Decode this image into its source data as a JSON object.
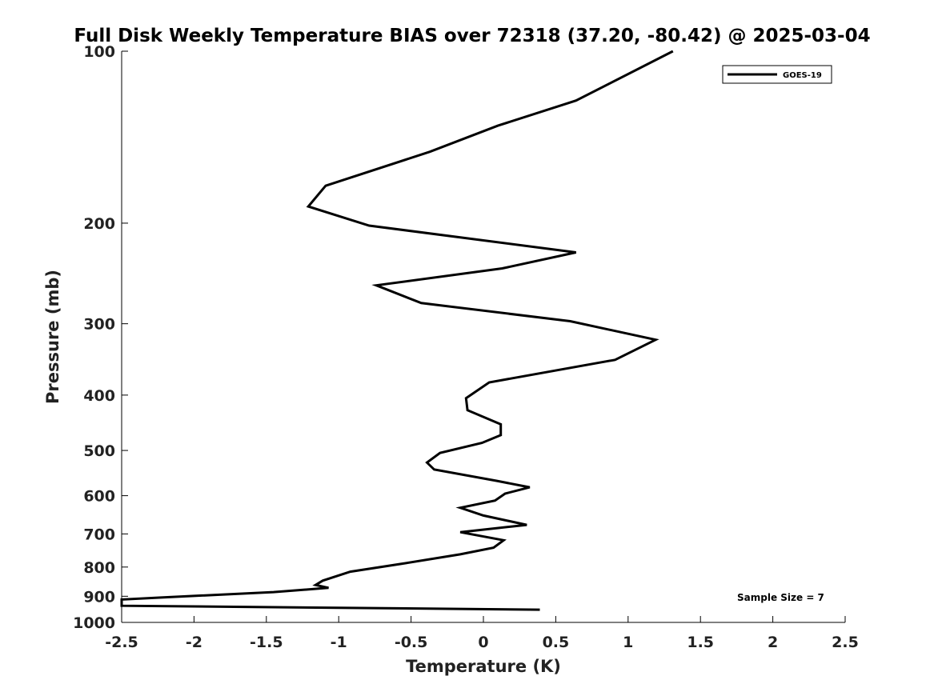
{
  "chart_data": {
    "type": "line",
    "title": "Full Disk Weekly Temperature BIAS over 72318 (37.20, -80.42) @ 2025-03-04",
    "xlabel": "Temperature (K)",
    "ylabel": "Pressure (mb)",
    "xlim": [
      -2.5,
      2.5
    ],
    "ylim": [
      100,
      1000
    ],
    "y_scale": "log",
    "y_reversed": true,
    "x_ticks": [
      "-2.5",
      "-2",
      "-1.5",
      "-1",
      "-0.5",
      "0",
      "0.5",
      "1",
      "1.5",
      "2",
      "2.5"
    ],
    "y_ticks": [
      "100",
      "200",
      "300",
      "400",
      "500",
      "600",
      "700",
      "800",
      "900",
      "1000"
    ],
    "grid": false,
    "legend_position": "top-right",
    "series": [
      {
        "name": "GOES-19",
        "color": "#000000",
        "x": [
          1.31,
          0.64,
          0.1,
          -0.37,
          -1.09,
          -1.21,
          -0.79,
          0.64,
          0.13,
          -0.74,
          -0.43,
          0.6,
          1.19,
          0.91,
          0.04,
          -0.12,
          -0.11,
          0.12,
          0.12,
          -0.01,
          -0.3,
          -0.39,
          -0.34,
          0.09,
          0.32,
          0.15,
          0.08,
          -0.16,
          0.0,
          0.3,
          -0.16,
          0.14,
          0.07,
          -0.16,
          -0.57,
          -0.92,
          -1.11,
          -1.16,
          -1.07,
          -1.45,
          -2.24,
          -2.5,
          -2.5,
          0.39
        ],
        "y": [
          100,
          122,
          135,
          150,
          172,
          187,
          202,
          225,
          240,
          257,
          276,
          297,
          320,
          347,
          380,
          405,
          425,
          450,
          470,
          485,
          505,
          525,
          540,
          565,
          580,
          595,
          612,
          630,
          650,
          675,
          695,
          718,
          740,
          760,
          790,
          815,
          845,
          860,
          870,
          885,
          905,
          912,
          935,
          950
        ]
      }
    ],
    "annotations": [
      "Sample Size = 7"
    ],
    "line_color": "#000000",
    "background": "#ffffff"
  }
}
